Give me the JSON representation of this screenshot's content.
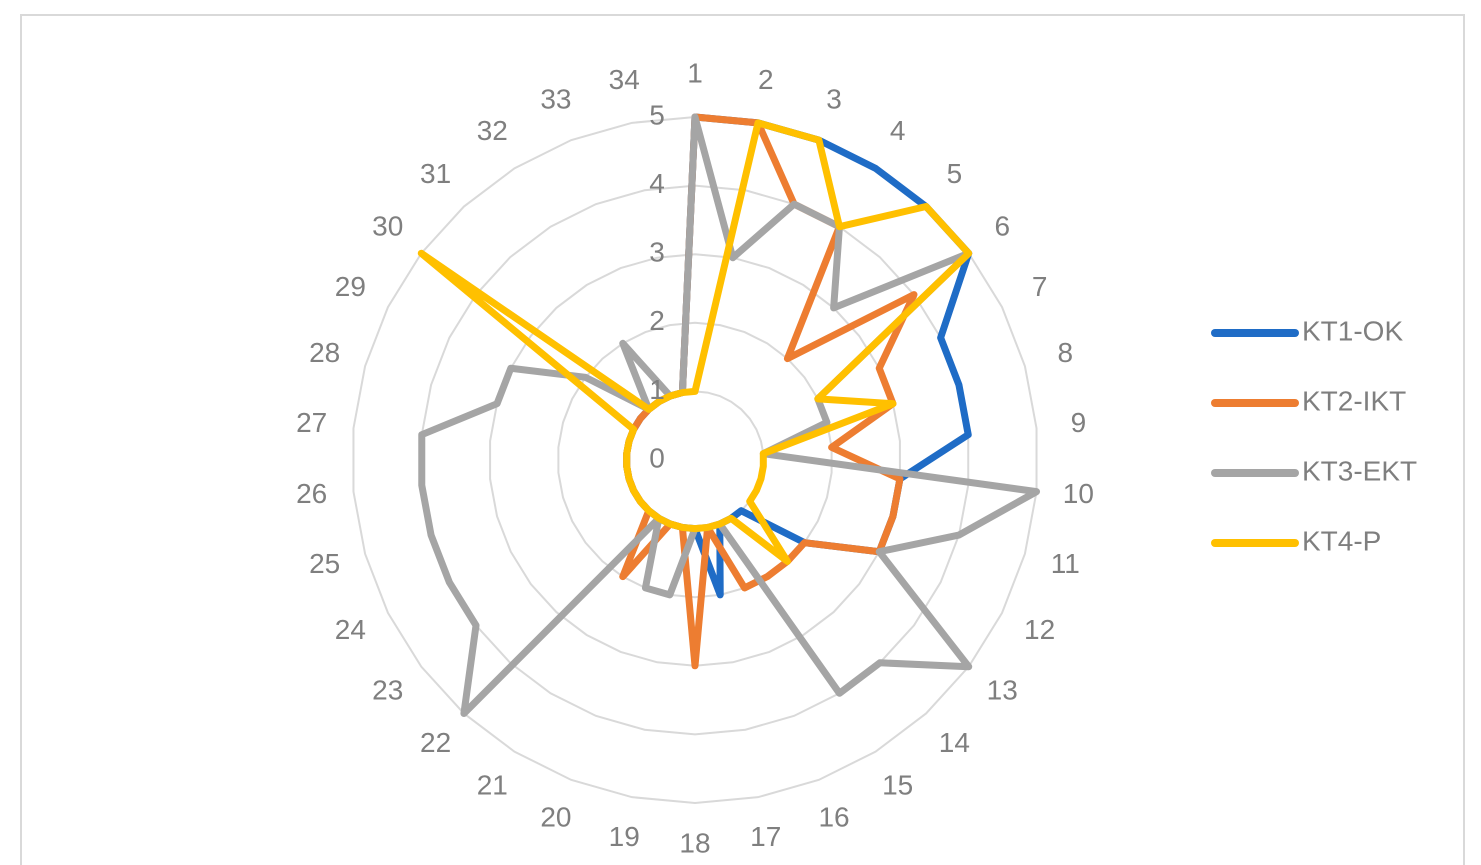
{
  "chart_data": {
    "type": "radar",
    "categories": [
      "1",
      "2",
      "3",
      "4",
      "5",
      "6",
      "7",
      "8",
      "9",
      "10",
      "11",
      "12",
      "13",
      "14",
      "15",
      "16",
      "17",
      "18",
      "19",
      "20",
      "21",
      "22",
      "23",
      "24",
      "25",
      "26",
      "27",
      "28",
      "29",
      "30",
      "31",
      "32",
      "33",
      "34"
    ],
    "rlim": [
      0,
      5
    ],
    "rticks": [
      0,
      1,
      2,
      3,
      4,
      5
    ],
    "grid": true,
    "legend": "right",
    "series": [
      {
        "name": "KT1-OK",
        "color": "#1f6cc6",
        "values": [
          5,
          5,
          5,
          5,
          5,
          5,
          4,
          4,
          4,
          3,
          3,
          3,
          2,
          1,
          1,
          1,
          2,
          1,
          1,
          1,
          1,
          1,
          1,
          1,
          1,
          1,
          1,
          1,
          1,
          1,
          1,
          1,
          1,
          1
        ]
      },
      {
        "name": "KT2-IKT",
        "color": "#ed7d31",
        "values": [
          5,
          5,
          4,
          4,
          2,
          4,
          3,
          3,
          2,
          3,
          3,
          3,
          2,
          2,
          2,
          2,
          1,
          3,
          1,
          1,
          2,
          1,
          1,
          1,
          1,
          1,
          1,
          1,
          1,
          1,
          1,
          1,
          1,
          1
        ]
      },
      {
        "name": "KT3-EKT",
        "color": "#a5a5a5",
        "values": [
          5,
          3,
          4,
          4,
          3,
          5,
          2,
          2,
          1,
          5,
          4,
          3,
          5,
          4,
          4,
          1,
          1,
          1,
          2,
          2,
          1,
          5,
          4,
          4,
          4,
          4,
          4,
          3,
          3,
          2,
          1,
          2,
          1,
          1
        ]
      },
      {
        "name": "KT4-P",
        "color": "#ffc000",
        "values": [
          1,
          5,
          5,
          4,
          5,
          5,
          2,
          3,
          1,
          1,
          1,
          1,
          1,
          2,
          1,
          1,
          1,
          1,
          1,
          1,
          1,
          1,
          1,
          1,
          1,
          1,
          1,
          1,
          1,
          5,
          1,
          1,
          1,
          1
        ]
      }
    ]
  }
}
